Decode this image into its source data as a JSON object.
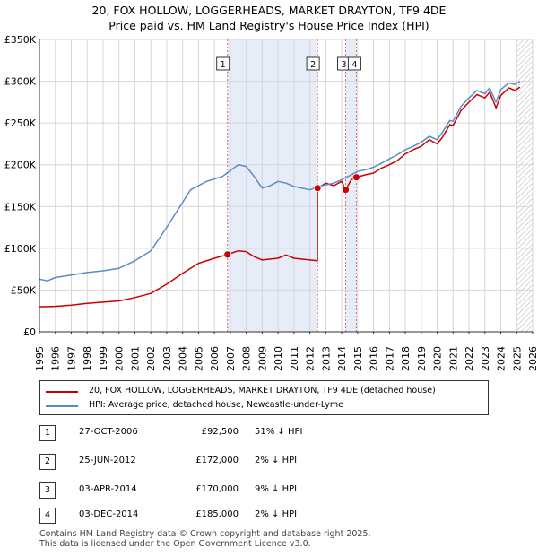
{
  "title_line1": "20, FOX HOLLOW, LOGGERHEADS, MARKET DRAYTON, TF9 4DE",
  "title_line2": "Price paid vs. HM Land Registry's House Price Index (HPI)",
  "colors": {
    "property": "#cc0000",
    "hpi": "#5b8ac7",
    "shade": "#e6ecf8",
    "vline": "#dd6666",
    "grid": "#d6d6d6"
  },
  "chart_data": {
    "type": "line",
    "x_ticks": [
      "1995",
      "1996",
      "1997",
      "1998",
      "1999",
      "2000",
      "2001",
      "2002",
      "2003",
      "2004",
      "2005",
      "2006",
      "2007",
      "2008",
      "2009",
      "2010",
      "2011",
      "2012",
      "2013",
      "2014",
      "2015",
      "2016",
      "2017",
      "2018",
      "2019",
      "2020",
      "2021",
      "2022",
      "2023",
      "2024",
      "2025",
      "2026"
    ],
    "xlim": [
      1995,
      2026
    ],
    "ylim": [
      0,
      350000
    ],
    "y_ticks": [
      {
        "value": 0,
        "label": "£0"
      },
      {
        "value": 50000,
        "label": "£50K"
      },
      {
        "value": 100000,
        "label": "£100K"
      },
      {
        "value": 150000,
        "label": "£150K"
      },
      {
        "value": 200000,
        "label": "£200K"
      },
      {
        "value": 250000,
        "label": "£250K"
      },
      {
        "value": 300000,
        "label": "£300K"
      },
      {
        "value": 350000,
        "label": "£350K"
      }
    ],
    "shaded_ranges": [
      [
        2006.82,
        2012.48
      ],
      [
        2014.25,
        2014.92
      ]
    ],
    "future_hatch_from": 2025.0,
    "series": [
      {
        "name": "20, FOX HOLLOW, LOGGERHEADS, MARKET DRAYTON, TF9 4DE (detached house)",
        "color": "#cc0000",
        "points": [
          [
            1995.0,
            30000
          ],
          [
            1996.0,
            30500
          ],
          [
            1997.0,
            32000
          ],
          [
            1998.0,
            34000
          ],
          [
            1999.0,
            35500
          ],
          [
            2000.0,
            37000
          ],
          [
            2001.0,
            41000
          ],
          [
            2002.0,
            46000
          ],
          [
            2003.0,
            57000
          ],
          [
            2004.0,
            70000
          ],
          [
            2005.0,
            82000
          ],
          [
            2006.0,
            88000
          ],
          [
            2006.82,
            92500
          ],
          [
            2007.5,
            97000
          ],
          [
            2008.0,
            96000
          ],
          [
            2008.5,
            90000
          ],
          [
            2009.0,
            86000
          ],
          [
            2010.0,
            88000
          ],
          [
            2010.5,
            92000
          ],
          [
            2011.0,
            88000
          ],
          [
            2012.0,
            86000
          ],
          [
            2012.47,
            85000
          ],
          [
            2012.48,
            172000
          ],
          [
            2013.0,
            178000
          ],
          [
            2013.5,
            175000
          ],
          [
            2014.0,
            180000
          ],
          [
            2014.25,
            170000
          ],
          [
            2014.6,
            182000
          ],
          [
            2014.92,
            185000
          ],
          [
            2015.5,
            188000
          ],
          [
            2016.0,
            190000
          ],
          [
            2016.5,
            196000
          ],
          [
            2017.0,
            200000
          ],
          [
            2017.5,
            205000
          ],
          [
            2018.0,
            213000
          ],
          [
            2018.5,
            218000
          ],
          [
            2019.0,
            222000
          ],
          [
            2019.5,
            230000
          ],
          [
            2020.0,
            225000
          ],
          [
            2020.3,
            232000
          ],
          [
            2020.8,
            248000
          ],
          [
            2021.0,
            247000
          ],
          [
            2021.5,
            265000
          ],
          [
            2022.0,
            275000
          ],
          [
            2022.5,
            284000
          ],
          [
            2023.0,
            280000
          ],
          [
            2023.3,
            287000
          ],
          [
            2023.7,
            268000
          ],
          [
            2024.0,
            283000
          ],
          [
            2024.5,
            292000
          ],
          [
            2024.9,
            289000
          ],
          [
            2025.2,
            293000
          ]
        ]
      },
      {
        "name": "HPI: Average price, detached house, Newcastle-under-Lyme",
        "color": "#5b8ac7",
        "points": [
          [
            1995.0,
            63000
          ],
          [
            1995.5,
            61000
          ],
          [
            1996.0,
            65000
          ],
          [
            1997.0,
            68000
          ],
          [
            1998.0,
            71000
          ],
          [
            1999.0,
            73000
          ],
          [
            2000.0,
            76000
          ],
          [
            2001.0,
            85000
          ],
          [
            2002.0,
            97000
          ],
          [
            2003.0,
            125000
          ],
          [
            2004.0,
            155000
          ],
          [
            2004.5,
            170000
          ],
          [
            2005.0,
            175000
          ],
          [
            2005.5,
            180000
          ],
          [
            2006.0,
            183000
          ],
          [
            2006.5,
            186000
          ],
          [
            2007.0,
            193000
          ],
          [
            2007.5,
            200000
          ],
          [
            2008.0,
            198000
          ],
          [
            2008.5,
            186000
          ],
          [
            2009.0,
            172000
          ],
          [
            2009.5,
            175000
          ],
          [
            2010.0,
            180000
          ],
          [
            2010.5,
            178000
          ],
          [
            2011.0,
            174000
          ],
          [
            2011.5,
            172000
          ],
          [
            2012.0,
            170000
          ],
          [
            2012.5,
            174000
          ],
          [
            2013.0,
            176000
          ],
          [
            2013.5,
            178000
          ],
          [
            2014.0,
            182000
          ],
          [
            2014.5,
            187000
          ],
          [
            2015.0,
            192000
          ],
          [
            2015.5,
            194000
          ],
          [
            2016.0,
            197000
          ],
          [
            2016.5,
            202000
          ],
          [
            2017.0,
            207000
          ],
          [
            2017.5,
            212000
          ],
          [
            2018.0,
            218000
          ],
          [
            2018.5,
            222000
          ],
          [
            2019.0,
            227000
          ],
          [
            2019.5,
            234000
          ],
          [
            2020.0,
            230000
          ],
          [
            2020.3,
            238000
          ],
          [
            2020.8,
            253000
          ],
          [
            2021.0,
            252000
          ],
          [
            2021.5,
            270000
          ],
          [
            2022.0,
            280000
          ],
          [
            2022.5,
            289000
          ],
          [
            2023.0,
            285000
          ],
          [
            2023.3,
            292000
          ],
          [
            2023.7,
            275000
          ],
          [
            2024.0,
            290000
          ],
          [
            2024.5,
            298000
          ],
          [
            2024.9,
            296000
          ],
          [
            2025.2,
            300000
          ]
        ]
      }
    ],
    "sales": [
      {
        "id": "1",
        "x": 2006.82,
        "price": 92500
      },
      {
        "id": "2",
        "x": 2012.48,
        "price": 172000
      },
      {
        "id": "3",
        "x": 2014.25,
        "price": 170000
      },
      {
        "id": "4",
        "x": 2014.92,
        "price": 185000
      }
    ]
  },
  "legend": {
    "property_label": "20, FOX HOLLOW, LOGGERHEADS, MARKET DRAYTON, TF9 4DE (detached house)",
    "hpi_label": "HPI: Average price, detached house, Newcastle-under-Lyme"
  },
  "sales_table": [
    {
      "id": "1",
      "date": "27-OCT-2006",
      "price": "£92,500",
      "hpi": "51% ↓ HPI"
    },
    {
      "id": "2",
      "date": "25-JUN-2012",
      "price": "£172,000",
      "hpi": "2% ↓ HPI"
    },
    {
      "id": "3",
      "date": "03-APR-2014",
      "price": "£170,000",
      "hpi": "9% ↓ HPI"
    },
    {
      "id": "4",
      "date": "03-DEC-2014",
      "price": "£185,000",
      "hpi": "2% ↓ HPI"
    }
  ],
  "footer_line1": "Contains HM Land Registry data © Crown copyright and database right 2025.",
  "footer_line2": "This data is licensed under the Open Government Licence v3.0."
}
